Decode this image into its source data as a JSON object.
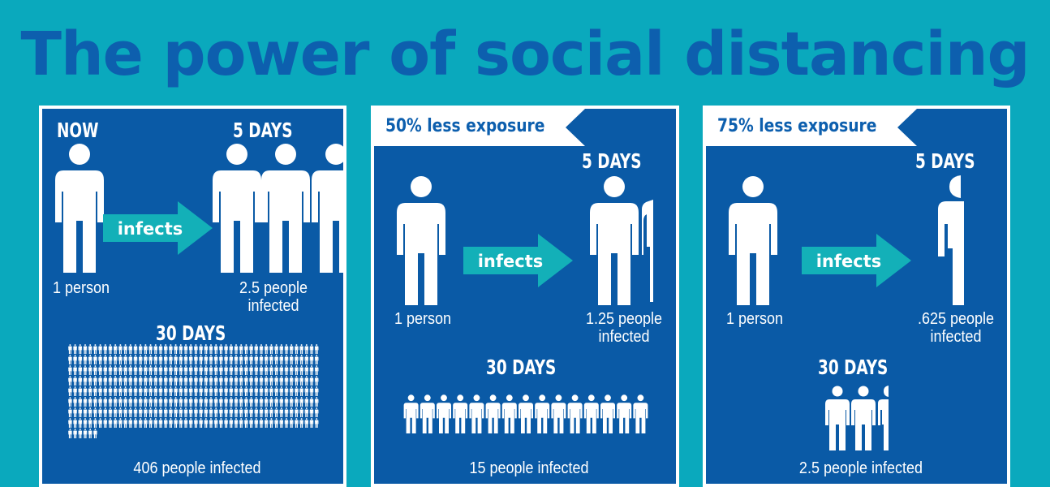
{
  "title": "The power of social distancing",
  "colors": {
    "background": "#0aa9bd",
    "panel": "#0a5aa6",
    "title": "#0d5fae",
    "arrow": "#13b0b8"
  },
  "panels": [
    {
      "now_label": "NOW",
      "five_days_label": "5 DAYS",
      "arrow_label": "infects",
      "source_label": "1 person",
      "five_days_result": [
        "2.5 people",
        "infected"
      ],
      "thirty_days_label": "30 DAYS",
      "thirty_days_result": "406 people infected",
      "thirty_days_count": 406
    },
    {
      "banner": "50% less exposure",
      "five_days_label": "5 DAYS",
      "arrow_label": "infects",
      "source_label": "1 person",
      "five_days_result": [
        "1.25 people",
        "infected"
      ],
      "thirty_days_label": "30 DAYS",
      "thirty_days_result": "15 people infected",
      "thirty_days_count": 15
    },
    {
      "banner": "75% less exposure",
      "five_days_label": "5 DAYS",
      "arrow_label": "infects",
      "source_label": "1 person",
      "five_days_result": [
        ".625 people",
        "infected"
      ],
      "thirty_days_label": "30 DAYS",
      "thirty_days_result": "2.5 people infected",
      "thirty_days_count": 2.5
    }
  ]
}
